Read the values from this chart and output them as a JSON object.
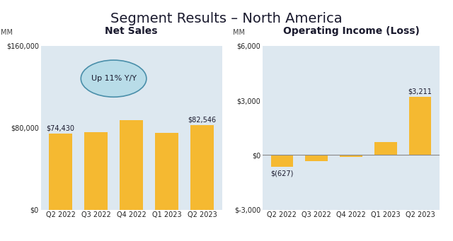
{
  "title": "Segment Results – North America",
  "title_fontsize": 14,
  "background_color": "#ffffff",
  "plot_bg_color": "#dde8f0",
  "bar_color": "#F5B931",
  "categories": [
    "Q2 2022",
    "Q3 2022",
    "Q4 2022",
    "Q1 2023",
    "Q2 2023"
  ],
  "net_sales_values": [
    74430,
    75800,
    87200,
    75200,
    82546
  ],
  "net_sales_labels": [
    "$74,430",
    "",
    "",
    "",
    "$82,546"
  ],
  "net_sales_ylim": [
    0,
    160000
  ],
  "net_sales_yticks": [
    0,
    80000,
    160000
  ],
  "net_sales_yticklabels": [
    "$0",
    "$80,000",
    "$160,000"
  ],
  "net_sales_title": "Net Sales",
  "op_income_values": [
    -627,
    -350,
    -120,
    700,
    3211
  ],
  "op_income_labels": [
    "$(627)",
    "",
    "",
    "",
    "$3,211"
  ],
  "op_income_ylim": [
    -3000,
    6000
  ],
  "op_income_yticks": [
    -3000,
    0,
    3000,
    6000
  ],
  "op_income_yticklabels": [
    "$-3,000",
    "$0",
    "$3,000",
    "$6,000"
  ],
  "op_income_title": "Operating Income (Loss)",
  "mm_label": "MM",
  "ellipse_text": "Up 11% Y/Y",
  "ellipse_facecolor": "#b8dce8",
  "ellipse_edgecolor": "#4a8faa"
}
